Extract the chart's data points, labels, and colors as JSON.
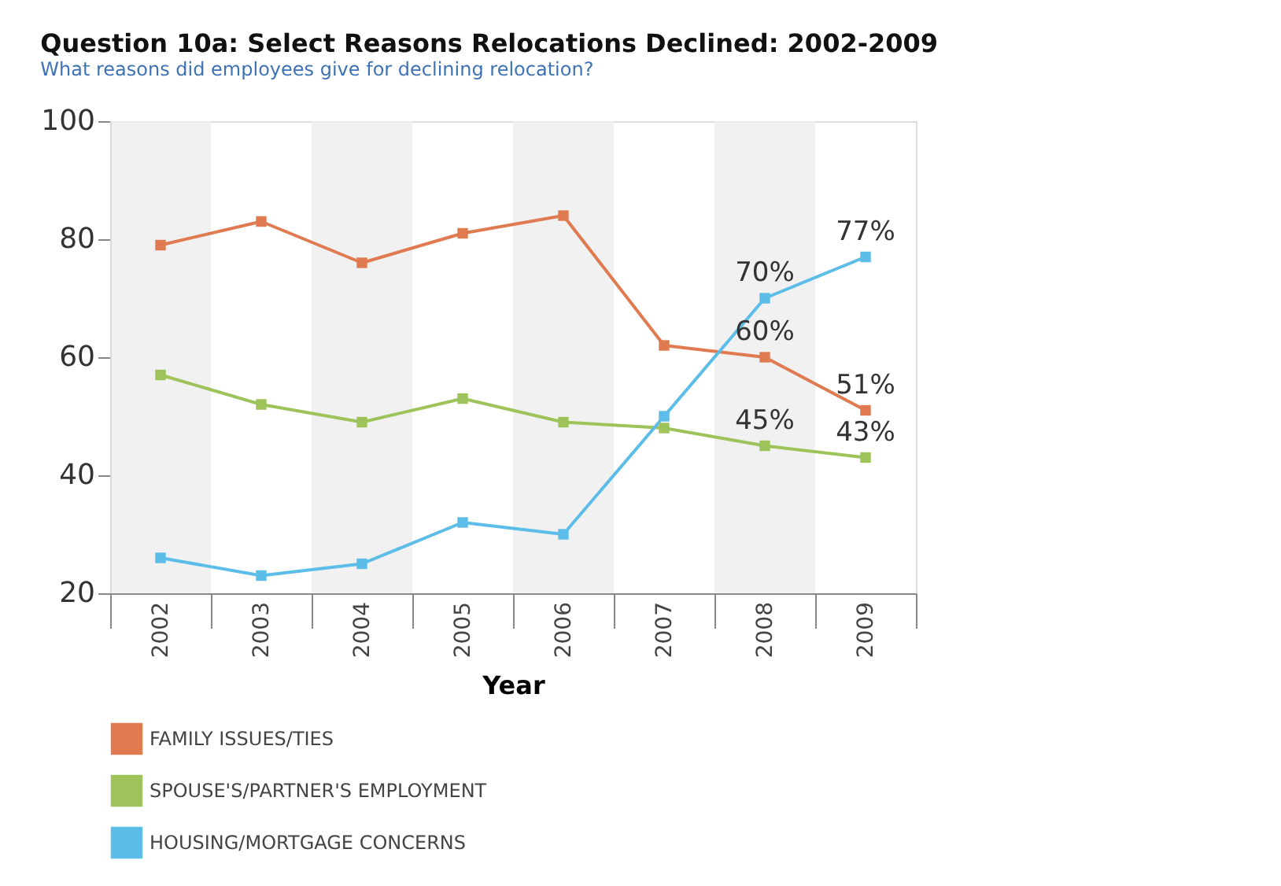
{
  "chart_data": {
    "type": "line",
    "title": "Question 10a: Select Reasons Relocations Declined: 2002-2009",
    "subtitle": "What reasons did employees give for declining relocation?",
    "xlabel": "Year",
    "categories": [
      "2002",
      "2003",
      "2004",
      "2005",
      "2006",
      "2007",
      "2008",
      "2009"
    ],
    "series": [
      {
        "name": "FAMILY ISSUES/TIES",
        "color": "#e07a50",
        "values": [
          79,
          83,
          76,
          81,
          84,
          62,
          60,
          51
        ],
        "value_labels": [
          null,
          null,
          null,
          null,
          null,
          null,
          "60%",
          "51%"
        ]
      },
      {
        "name": "SPOUSE'S/PARTNER'S EMPLOYMENT",
        "color": "#9dc35a",
        "values": [
          57,
          52,
          49,
          53,
          49,
          48,
          45,
          43
        ],
        "value_labels": [
          null,
          null,
          null,
          null,
          null,
          null,
          "45%",
          "43%"
        ]
      },
      {
        "name": "HOUSING/MORTGAGE CONCERNS",
        "color": "#5bbde8",
        "values": [
          26,
          23,
          25,
          32,
          30,
          50,
          70,
          77
        ],
        "value_labels": [
          null,
          null,
          null,
          null,
          null,
          null,
          "70%",
          "77%"
        ]
      }
    ],
    "bands": [
      {
        "axis": "x",
        "from": "2002",
        "to": "2002",
        "color": "#eeeeee"
      },
      {
        "axis": "x",
        "from": "2004",
        "to": "2004",
        "color": "#eeeeee"
      },
      {
        "axis": "x",
        "from": "2006",
        "to": "2006",
        "color": "#eeeeee"
      },
      {
        "axis": "x",
        "from": "2008",
        "to": "2008",
        "color": "#eeeeee"
      }
    ],
    "ylim": [
      20,
      100
    ],
    "yticks": [
      20,
      40,
      60,
      80,
      100
    ],
    "grid": false,
    "legend": "bottom left",
    "marker": "square",
    "line_style": "solid"
  }
}
